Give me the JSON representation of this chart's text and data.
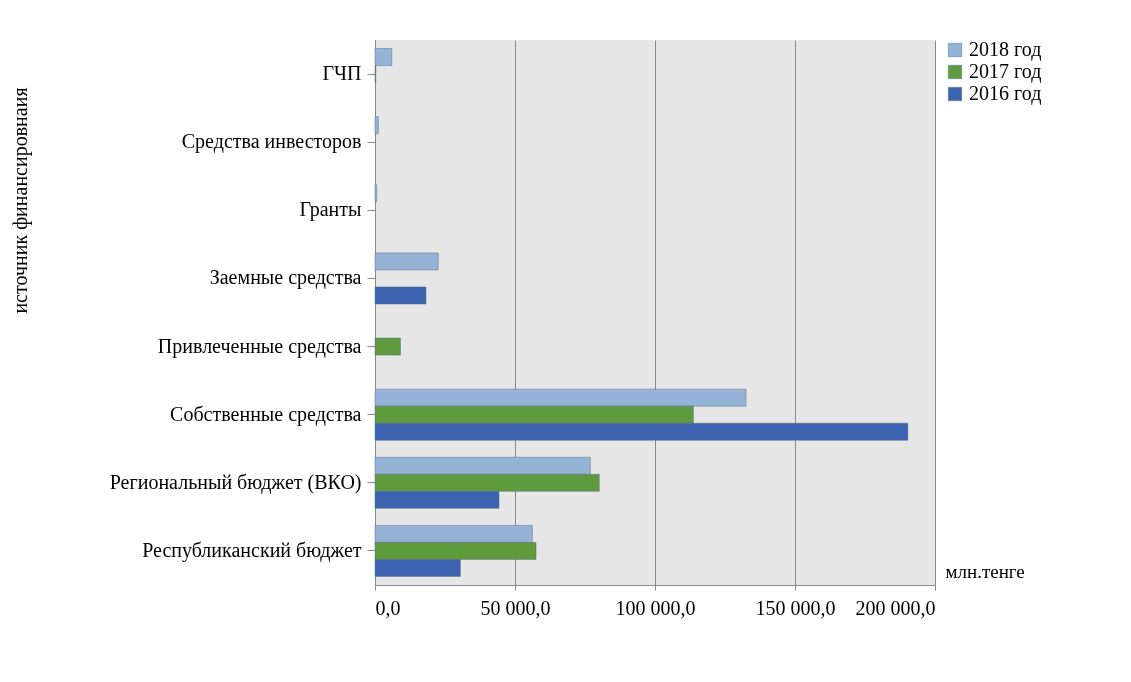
{
  "chart_data": {
    "type": "bar",
    "orientation": "horizontal",
    "ylabel": "источник финансировнаия",
    "xlabel": "млн.тенге",
    "categories": [
      "ГЧП",
      "Средства инвесторов",
      "Гранты",
      "Заемные средства",
      "Привлеченные средства",
      "Собственные средства",
      "Региональный бюджет (ВКО)",
      "Республиканский бюджет"
    ],
    "series": [
      {
        "name": "2018 год",
        "color": "#95b3d7",
        "values": [
          6000,
          1200,
          600,
          22600,
          null,
          132500,
          76900,
          56200
        ]
      },
      {
        "name": "2017 год",
        "color": "#5f9a3c",
        "values": [
          300,
          null,
          null,
          null,
          9100,
          113700,
          80100,
          57500
        ]
      },
      {
        "name": "2016 год",
        "color": "#3a62ae",
        "values": [
          null,
          null,
          null,
          18200,
          null,
          190300,
          44300,
          30500
        ]
      }
    ],
    "xlim": [
      0,
      200000
    ],
    "xticks": [
      {
        "value": 0,
        "label": "0,0"
      },
      {
        "value": 50000,
        "label": "50 000,0"
      },
      {
        "value": 100000,
        "label": "100 000,0"
      },
      {
        "value": 150000,
        "label": "150 000,0"
      },
      {
        "value": 200000,
        "label": "200 000,0"
      }
    ],
    "grid": "x",
    "legend": "right"
  }
}
